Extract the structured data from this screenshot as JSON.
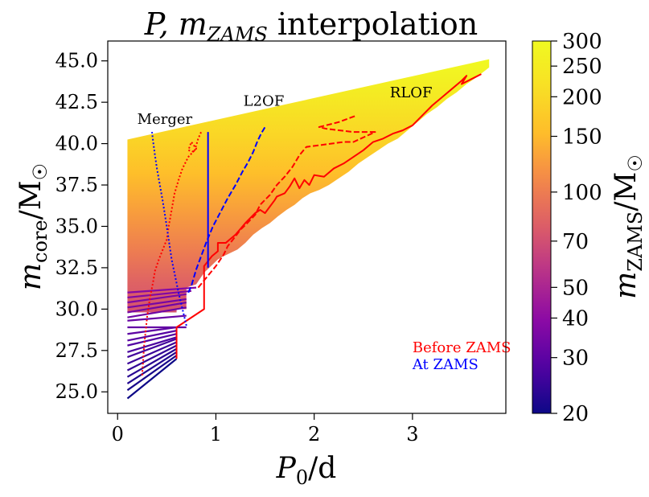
{
  "chart_data": {
    "type": "line",
    "title_main": "P, m",
    "title_sub": "ZAMS",
    "title_rest": " interpolation",
    "xlabel": "P",
    "xlabel_sub": "0",
    "xlabel_rest": "/d",
    "ylabel": "m",
    "ylabel_sub": "core",
    "ylabel_rest": "/M",
    "ylabel_sym": "☉",
    "xlim": [
      -0.1,
      3.95
    ],
    "ylim": [
      23.7,
      46.2
    ],
    "xticks": [
      0,
      1,
      2,
      3
    ],
    "yticks": [
      25.0,
      27.5,
      30.0,
      32.5,
      35.0,
      37.5,
      40.0,
      42.5,
      45.0
    ],
    "xtick_labels": [
      "0",
      "1",
      "2",
      "3"
    ],
    "ytick_labels": [
      "25.0",
      "27.5",
      "30.0",
      "32.5",
      "35.0",
      "37.5",
      "40.0",
      "42.5",
      "45.0"
    ],
    "annotations": [
      {
        "text": "Merger",
        "x": 0.2,
        "y": 41.2
      },
      {
        "text": "L2OF",
        "x": 1.28,
        "y": 42.3
      },
      {
        "text": "RLOF",
        "x": 2.77,
        "y": 42.8
      }
    ],
    "legend_text": [
      {
        "text": "Before ZAMS",
        "color": "#ff0000"
      },
      {
        "text": "At ZAMS",
        "color": "#0000ff"
      }
    ],
    "colorbar": {
      "label": "m",
      "label_sub": "ZAMS",
      "label_rest": "/M",
      "label_sym": "☉",
      "scale": "log",
      "range": [
        20,
        300
      ],
      "ticks": [
        20,
        30,
        40,
        50,
        70,
        100,
        150,
        200,
        250,
        300
      ],
      "tick_labels": [
        "20",
        "30",
        "40",
        "50",
        "70",
        "100",
        "150",
        "200",
        "250",
        "300"
      ],
      "colormap": "plasma"
    },
    "fan_lines": [
      {
        "m": 20,
        "x": [
          0.1,
          0.6
        ],
        "y": [
          24.6,
          27.0
        ]
      },
      {
        "m": 21,
        "x": [
          0.1,
          0.6
        ],
        "y": [
          25.1,
          27.2
        ]
      },
      {
        "m": 22,
        "x": [
          0.1,
          0.6
        ],
        "y": [
          25.5,
          27.4
        ]
      },
      {
        "m": 23,
        "x": [
          0.1,
          0.6
        ],
        "y": [
          25.9,
          27.6
        ]
      },
      {
        "m": 24,
        "x": [
          0.1,
          0.6
        ],
        "y": [
          26.3,
          27.8
        ]
      },
      {
        "m": 25,
        "x": [
          0.1,
          0.6
        ],
        "y": [
          26.7,
          28.0
        ]
      },
      {
        "m": 26,
        "x": [
          0.1,
          0.6
        ],
        "y": [
          27.1,
          28.2
        ]
      },
      {
        "m": 27,
        "x": [
          0.1,
          0.6
        ],
        "y": [
          27.4,
          28.3
        ]
      },
      {
        "m": 28,
        "x": [
          0.1,
          0.6
        ],
        "y": [
          27.8,
          28.5
        ]
      },
      {
        "m": 29,
        "x": [
          0.1,
          0.6
        ],
        "y": [
          28.1,
          28.7
        ]
      },
      {
        "m": 30,
        "x": [
          0.1,
          0.6
        ],
        "y": [
          28.5,
          28.9
        ]
      },
      {
        "m": 31,
        "x": [
          0.1,
          0.7
        ],
        "y": [
          28.9,
          28.9
        ]
      },
      {
        "m": 32,
        "x": [
          0.1,
          0.7
        ],
        "y": [
          29.3,
          29.6
        ]
      },
      {
        "m": 33,
        "x": [
          0.1,
          0.7
        ],
        "y": [
          29.5,
          30.1
        ]
      },
      {
        "m": 34,
        "x": [
          0.1,
          0.7
        ],
        "y": [
          29.8,
          30.4
        ]
      },
      {
        "m": 35,
        "x": [
          0.1,
          0.7
        ],
        "y": [
          30.1,
          30.6
        ]
      },
      {
        "m": 36,
        "x": [
          0.1,
          0.7
        ],
        "y": [
          30.4,
          30.9
        ]
      },
      {
        "m": 37,
        "x": [
          0.1,
          0.75
        ],
        "y": [
          30.7,
          31.1
        ]
      },
      {
        "m": 38,
        "x": [
          0.1,
          0.8
        ],
        "y": [
          31.0,
          31.3
        ]
      }
    ],
    "region_top": {
      "x": [
        0.1,
        3.78
      ],
      "y": [
        40.25,
        45.1
      ]
    },
    "region_bottom": {
      "x": [
        0.1,
        0.6,
        0.6,
        0.7,
        0.7,
        0.8,
        0.88,
        0.95,
        1.02,
        1.08,
        1.15,
        1.22,
        1.3,
        1.38,
        1.47,
        1.55,
        1.63,
        1.72,
        1.8,
        1.88,
        1.96,
        2.05,
        2.15,
        2.25,
        2.35,
        2.45,
        2.55,
        2.65,
        2.75,
        2.85,
        2.95,
        3.05,
        3.15,
        3.25,
        3.35,
        3.45,
        3.55,
        3.65,
        3.78
      ],
      "y": [
        29.8,
        29.8,
        30.0,
        30.0,
        31.3,
        31.5,
        32.2,
        32.6,
        33.0,
        33.2,
        33.4,
        33.6,
        34.0,
        34.5,
        34.9,
        35.2,
        35.6,
        36.0,
        36.3,
        36.7,
        37.0,
        37.2,
        37.5,
        37.9,
        38.3,
        38.8,
        39.2,
        39.6,
        40.0,
        40.3,
        40.8,
        41.3,
        41.8,
        42.2,
        42.7,
        43.1,
        43.6,
        44.0,
        44.6
      ]
    },
    "series": [
      {
        "name": "",
        "color": "#ff0000",
        "style": "solid",
        "x": [
          0.6,
          0.6,
          0.88,
          0.88,
          0.96,
          0.96,
          1.02,
          1.02,
          1.1,
          1.2,
          1.3,
          1.4,
          1.45,
          1.5,
          1.55,
          1.6,
          1.62,
          1.7,
          1.75,
          1.8,
          1.85,
          1.9,
          1.95,
          2.0,
          2.1,
          2.2,
          2.3,
          2.4,
          2.5,
          2.6,
          2.7,
          2.8,
          2.9,
          3.0,
          3.1,
          3.2,
          3.3,
          3.4,
          3.5,
          3.55,
          3.5,
          3.6,
          3.7
        ],
        "y": [
          27.0,
          28.9,
          30.0,
          32.6,
          33.2,
          33.2,
          33.5,
          34.0,
          34.0,
          34.5,
          35.2,
          35.8,
          36.0,
          35.8,
          36.2,
          36.6,
          36.8,
          37.0,
          37.4,
          37.9,
          37.3,
          37.8,
          37.5,
          38.1,
          38.0,
          38.5,
          38.8,
          39.2,
          39.6,
          40.1,
          40.3,
          40.6,
          40.8,
          41.1,
          41.7,
          42.3,
          42.8,
          43.3,
          43.8,
          44.1,
          43.6,
          43.9,
          44.2
        ]
      },
      {
        "name": "",
        "color": "#ff0000",
        "style": "dashed",
        "x": [
          0.82,
          1.0,
          1.08,
          1.12,
          1.2,
          1.25,
          1.32,
          1.4,
          1.45,
          1.55,
          1.62,
          1.7,
          1.78,
          1.85,
          1.92,
          2.05,
          2.3,
          2.4,
          2.62,
          2.4,
          2.12,
          2.05,
          2.25,
          2.43
        ],
        "y": [
          31.3,
          32.6,
          33.3,
          33.8,
          34.4,
          34.8,
          35.2,
          35.7,
          36.3,
          36.9,
          37.5,
          38.0,
          38.6,
          39.3,
          39.8,
          39.9,
          40.1,
          40.1,
          40.7,
          40.7,
          40.9,
          41.0,
          41.3,
          41.7
        ]
      },
      {
        "name": "",
        "color": "#ff0000",
        "style": "dotted",
        "x": [
          0.25,
          0.27,
          0.3,
          0.33,
          0.36,
          0.38,
          0.42,
          0.46,
          0.5,
          0.52,
          0.55,
          0.58,
          0.62,
          0.66,
          0.72,
          0.8,
          0.75,
          0.72,
          0.78,
          0.82,
          0.85
        ],
        "y": [
          26.0,
          27.8,
          29.5,
          30.7,
          31.6,
          32.3,
          33.0,
          33.6,
          34.2,
          35.0,
          36.0,
          37.0,
          37.8,
          38.5,
          39.2,
          39.7,
          40.1,
          39.6,
          39.5,
          40.3,
          40.7
        ]
      },
      {
        "name": "",
        "color": "#0000ff",
        "style": "solid",
        "x": [
          0.92,
          0.92
        ],
        "y": [
          32.5,
          40.7
        ]
      },
      {
        "name": "",
        "color": "#0000ff",
        "style": "dashed",
        "x": [
          0.72,
          0.75,
          0.8,
          0.85,
          0.9,
          0.97,
          1.05,
          1.12,
          1.2,
          1.27,
          1.33,
          1.38,
          1.42,
          1.46,
          1.5
        ],
        "y": [
          31.0,
          31.4,
          32.4,
          33.2,
          34.0,
          35.0,
          35.9,
          36.7,
          37.5,
          38.3,
          38.9,
          39.5,
          40.1,
          40.6,
          41.0
        ]
      },
      {
        "name": "",
        "color": "#0000ff",
        "style": "dotted",
        "x": [
          0.7,
          0.68,
          0.62,
          0.55,
          0.5,
          0.46,
          0.43,
          0.4,
          0.38,
          0.36,
          0.35
        ],
        "y": [
          29.0,
          29.5,
          31.0,
          33.0,
          35.0,
          36.5,
          37.5,
          38.5,
          39.3,
          40.2,
          40.7
        ]
      }
    ]
  }
}
